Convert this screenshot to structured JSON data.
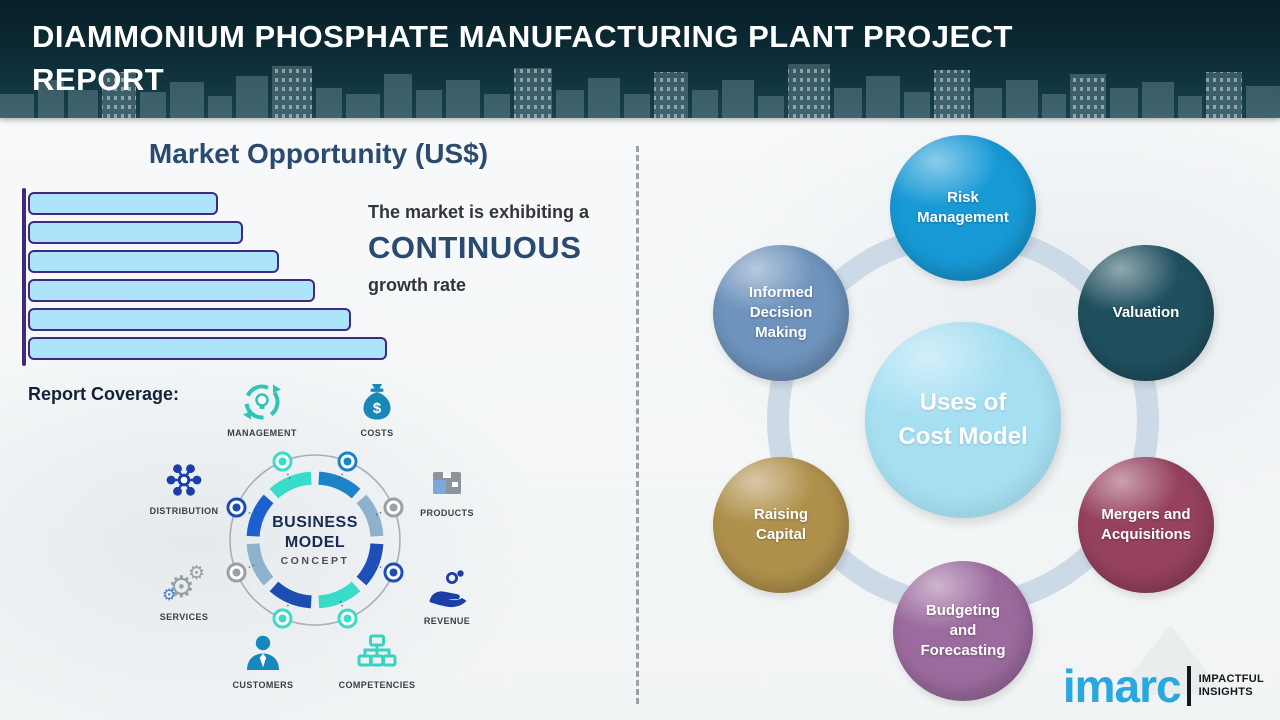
{
  "header": {
    "title": "DIAMMONIUM PHOSPHATE MANUFACTURING PLANT PROJECT REPORT"
  },
  "market": {
    "title": "Market Opportunity (US$)",
    "growth_line1": "The market is exhibiting a",
    "growth_emphasis": "CONTINUOUS",
    "growth_line2": "growth rate"
  },
  "chart_data": {
    "type": "bar",
    "orientation": "horizontal",
    "title": "Market Opportunity (US$)",
    "categories": [
      "",
      "",
      "",
      "",
      "",
      ""
    ],
    "values": [
      53,
      60,
      70,
      80,
      90,
      100
    ],
    "value_unit": "relative % of longest bar (no numeric axis shown)",
    "bar_fill": "#ade4f9",
    "bar_border": "#3f2a7e",
    "axis_color": "#3f2a7e",
    "grid": false
  },
  "coverage": {
    "title": "Report Coverage:",
    "items": [
      {
        "label": "MANAGEMENT",
        "icon": "management-cycle-icon",
        "color": "#2fc5b6"
      },
      {
        "label": "COSTS",
        "icon": "money-bag-icon",
        "color": "#1b87b8"
      },
      {
        "label": "DISTRIBUTION",
        "icon": "network-hub-icon",
        "color": "#1b3fa6"
      },
      {
        "label": "PRODUCTS",
        "icon": "box-icon",
        "color": "#8d959c"
      },
      {
        "label": "SERVICES",
        "icon": "gears-icon",
        "color": "#97a0a6"
      },
      {
        "label": "REVENUE",
        "icon": "hand-coins-icon",
        "color": "#1b3fa6"
      },
      {
        "label": "CUSTOMERS",
        "icon": "person-icon",
        "color": "#1787c0"
      },
      {
        "label": "COMPETENCIES",
        "icon": "org-chart-icon",
        "color": "#35d3c0"
      }
    ],
    "center": {
      "line1": "BUSINESS",
      "line2": "MODEL",
      "line3": "CONCEPT"
    }
  },
  "cost_model": {
    "center_line1": "Uses of",
    "center_line2": "Cost Model",
    "center_color": "#a6dff2",
    "ring_color": "#ccd9e6",
    "circles": [
      {
        "id": "risk",
        "label": "Risk Management",
        "color": "#1799d6"
      },
      {
        "id": "informed",
        "label": "Informed Decision Making",
        "color": "#6e93bc"
      },
      {
        "id": "valuation",
        "label": "Valuation",
        "color": "#20505f"
      },
      {
        "id": "raising",
        "label": "Raising Capital",
        "color": "#b0914c"
      },
      {
        "id": "mergers",
        "label": "Mergers and Acquisitions",
        "color": "#96415f"
      },
      {
        "id": "budgeting",
        "label": "Budgeting and Forecasting",
        "color": "#9c6b9e"
      }
    ]
  },
  "logo": {
    "brand": "imarc",
    "brand_color": "#29a8e0",
    "tagline_line1": "IMPACTFUL",
    "tagline_line2": "INSIGHTS"
  }
}
